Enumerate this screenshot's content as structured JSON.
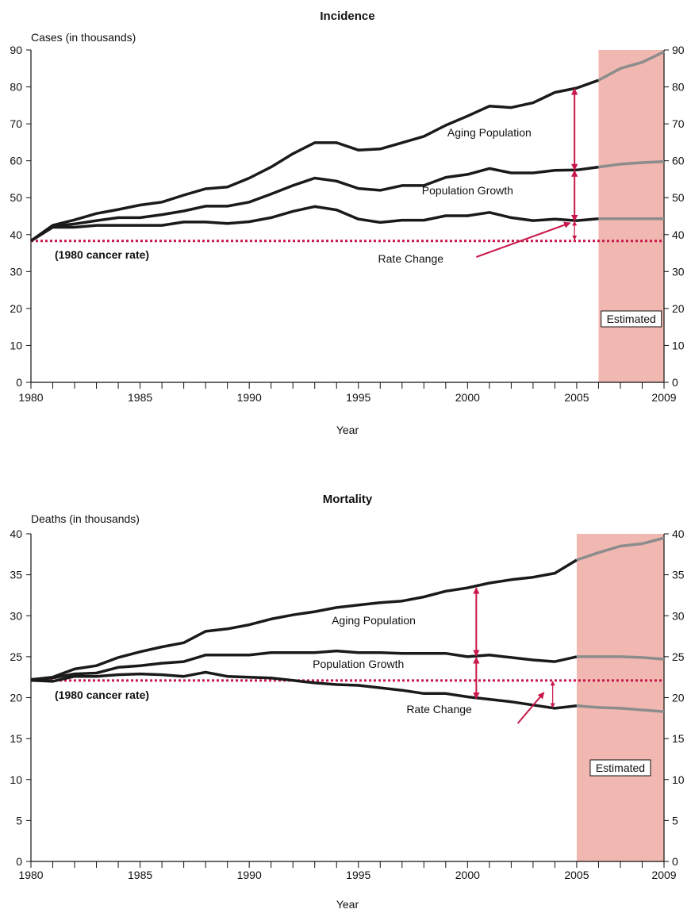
{
  "chart_data": [
    {
      "type": "line",
      "title": "Incidence",
      "ylabel": "Cases (in thousands)",
      "xlabel": "Year",
      "xlim": [
        1980,
        2009
      ],
      "ylim": [
        0,
        90
      ],
      "x_ticks": [
        1980,
        1981,
        1982,
        1983,
        1984,
        1985,
        1986,
        1987,
        1988,
        1989,
        1990,
        1991,
        1992,
        1993,
        1994,
        1995,
        1996,
        1997,
        1998,
        1999,
        2000,
        2001,
        2002,
        2003,
        2004,
        2005,
        2006,
        2007,
        2008,
        2009
      ],
      "x_tick_labels": [
        "1980",
        "1985",
        "1990",
        "1995",
        "2000",
        "2005",
        "2009"
      ],
      "y_ticks": [
        0,
        10,
        20,
        30,
        40,
        50,
        60,
        70,
        80,
        90
      ],
      "y_tick_labels": [
        "0",
        "10",
        "20",
        "30",
        "40",
        "50",
        "60",
        "70",
        "80",
        "90"
      ],
      "grid": false,
      "baseline": {
        "label": "(1980 cancer rate)",
        "value": 38.3,
        "color": "#c8174a"
      },
      "estimated": {
        "label": "Estimated",
        "from": 2006,
        "to": 2009,
        "color": "#f0b8b0"
      },
      "annotations": [
        {
          "label": "Aging Population",
          "arrow_x": 2004.9,
          "arrow_from": 57.5,
          "arrow_to": 79.5
        },
        {
          "label": "Population Growth",
          "arrow_x": 2004.9,
          "arrow_from": 43.7,
          "arrow_to": 57.3
        },
        {
          "label": "Rate Change",
          "arrow_x": 2004.9,
          "arrow_from": 38.6,
          "arrow_to": 43.6
        }
      ],
      "series": [
        {
          "x": [
            1980,
            1981,
            1982,
            1983,
            1984,
            1985,
            1986,
            1987,
            1988,
            1989,
            1990,
            1991,
            1992,
            1993,
            1994,
            1995,
            1996,
            1997,
            1998,
            1999,
            2000,
            2001,
            2002,
            2003,
            2004,
            2005,
            2006,
            2007,
            2008,
            2009
          ],
          "values": [
            38.3,
            42.5,
            44.0,
            45.7,
            46.8,
            48.0,
            48.8,
            50.7,
            52.4,
            52.9,
            55.3,
            58.3,
            61.9,
            64.9,
            64.9,
            62.9,
            63.2,
            64.9,
            66.6,
            69.6,
            72.1,
            74.8,
            74.4,
            75.7,
            78.5,
            79.7,
            81.8,
            85.0,
            86.7,
            89.5
          ]
        },
        {
          "x": [
            1980,
            1981,
            1982,
            1983,
            1984,
            1985,
            1986,
            1987,
            1988,
            1989,
            1990,
            1991,
            1992,
            1993,
            1994,
            1995,
            1996,
            1997,
            1998,
            1999,
            2000,
            2001,
            2002,
            2003,
            2004,
            2005,
            2006,
            2007,
            2008,
            2009
          ],
          "values": [
            38.3,
            42.2,
            42.9,
            43.8,
            44.6,
            44.6,
            45.4,
            46.4,
            47.7,
            47.7,
            48.8,
            51.0,
            53.3,
            55.3,
            54.5,
            52.5,
            52.0,
            53.3,
            53.3,
            55.5,
            56.3,
            57.9,
            56.7,
            56.7,
            57.4,
            57.5,
            58.3,
            59.1,
            59.5,
            59.8
          ]
        },
        {
          "x": [
            1980,
            1981,
            1982,
            1983,
            1984,
            1985,
            1986,
            1987,
            1988,
            1989,
            1990,
            1991,
            1992,
            1993,
            1994,
            1995,
            1996,
            1997,
            1998,
            1999,
            2000,
            2001,
            2002,
            2003,
            2004,
            2005,
            2006,
            2007,
            2008,
            2009
          ],
          "values": [
            38.3,
            42.0,
            42.0,
            42.5,
            42.5,
            42.5,
            42.5,
            43.4,
            43.4,
            43.0,
            43.5,
            44.6,
            46.3,
            47.6,
            46.7,
            44.2,
            43.3,
            43.9,
            43.9,
            45.1,
            45.1,
            46.0,
            44.6,
            43.8,
            44.2,
            43.8,
            44.3,
            44.3,
            44.3,
            44.3
          ]
        }
      ]
    },
    {
      "type": "line",
      "title": "Mortality",
      "ylabel": "Deaths (in thousands)",
      "xlabel": "Year",
      "xlim": [
        1980,
        2009
      ],
      "ylim": [
        0,
        40
      ],
      "x_ticks": [
        1980,
        1981,
        1982,
        1983,
        1984,
        1985,
        1986,
        1987,
        1988,
        1989,
        1990,
        1991,
        1992,
        1993,
        1994,
        1995,
        1996,
        1997,
        1998,
        1999,
        2000,
        2001,
        2002,
        2003,
        2004,
        2005,
        2006,
        2007,
        2008,
        2009
      ],
      "x_tick_labels": [
        "1980",
        "1985",
        "1990",
        "1995",
        "2000",
        "2005",
        "2009"
      ],
      "y_ticks": [
        0,
        5,
        10,
        15,
        20,
        25,
        30,
        35,
        40
      ],
      "y_tick_labels": [
        "0",
        "5",
        "10",
        "15",
        "20",
        "25",
        "30",
        "35",
        "40"
      ],
      "grid": false,
      "baseline": {
        "label": "(1980 cancer rate)",
        "value": 22.1,
        "color": "#c8174a"
      },
      "estimated": {
        "label": "Estimated",
        "from": 2005,
        "to": 2009,
        "color": "#f0b8b0"
      },
      "annotations": [
        {
          "label": "Aging Population",
          "arrow_x": 2000.4,
          "arrow_from": 25.1,
          "arrow_to": 33.4
        },
        {
          "label": "Population Growth",
          "arrow_x": 2000.4,
          "arrow_from": 19.9,
          "arrow_to": 24.9
        },
        {
          "label": "Rate Change",
          "arrow_x": 2003.9,
          "arrow_from": 18.8,
          "arrow_to": 22.0
        }
      ],
      "series": [
        {
          "x": [
            1980,
            1981,
            1982,
            1983,
            1984,
            1985,
            1986,
            1987,
            1988,
            1989,
            1990,
            1991,
            1992,
            1993,
            1994,
            1995,
            1996,
            1997,
            1998,
            1999,
            2000,
            2001,
            2002,
            2003,
            2004,
            2005,
            2006,
            2007,
            2008,
            2009
          ],
          "values": [
            22.2,
            22.5,
            23.5,
            23.9,
            24.9,
            25.6,
            26.2,
            26.7,
            28.1,
            28.4,
            28.9,
            29.6,
            30.1,
            30.5,
            31.0,
            31.3,
            31.6,
            31.8,
            32.3,
            33.0,
            33.4,
            34.0,
            34.4,
            34.7,
            35.2,
            36.8,
            37.7,
            38.5,
            38.8,
            39.5
          ]
        },
        {
          "x": [
            1980,
            1981,
            1982,
            1983,
            1984,
            1985,
            1986,
            1987,
            1988,
            1989,
            1990,
            1991,
            1992,
            1993,
            1994,
            1995,
            1996,
            1997,
            1998,
            1999,
            2000,
            2001,
            2002,
            2003,
            2004,
            2005,
            2006,
            2007,
            2008,
            2009
          ],
          "values": [
            22.2,
            22.4,
            22.9,
            23.0,
            23.7,
            23.9,
            24.2,
            24.4,
            25.2,
            25.2,
            25.2,
            25.5,
            25.5,
            25.5,
            25.7,
            25.5,
            25.5,
            25.4,
            25.4,
            25.4,
            25.0,
            25.2,
            24.9,
            24.6,
            24.4,
            25.0,
            25.0,
            25.0,
            24.9,
            24.7
          ]
        },
        {
          "x": [
            1980,
            1981,
            1982,
            1983,
            1984,
            1985,
            1986,
            1987,
            1988,
            1989,
            1990,
            1991,
            1992,
            1993,
            1994,
            1995,
            1996,
            1997,
            1998,
            1999,
            2000,
            2001,
            2002,
            2003,
            2004,
            2005,
            2006,
            2007,
            2008,
            2009
          ],
          "values": [
            22.1,
            22.0,
            22.6,
            22.6,
            22.8,
            22.9,
            22.8,
            22.6,
            23.1,
            22.6,
            22.5,
            22.4,
            22.1,
            21.8,
            21.6,
            21.5,
            21.2,
            20.9,
            20.5,
            20.5,
            20.1,
            19.8,
            19.5,
            19.1,
            18.7,
            19.0,
            18.8,
            18.7,
            18.5,
            18.3
          ]
        }
      ]
    }
  ]
}
